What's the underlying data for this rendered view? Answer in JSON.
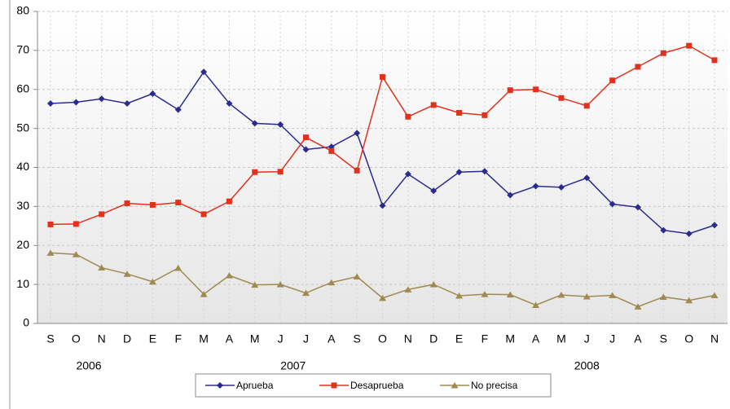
{
  "chart_data": {
    "type": "line",
    "categories": [
      "S",
      "O",
      "N",
      "D",
      "E",
      "F",
      "M",
      "A",
      "M",
      "J",
      "J",
      "A",
      "S",
      "O",
      "N",
      "D",
      "E",
      "F",
      "M",
      "A",
      "M",
      "J",
      "J",
      "A",
      "S",
      "O",
      "N"
    ],
    "x_groups": [
      "2006",
      "2007",
      "2008"
    ],
    "series": [
      {
        "name": "Aprueba",
        "color": "#2b2b8f",
        "marker": "diamond",
        "values": [
          56.4,
          56.7,
          57.6,
          56.4,
          58.9,
          54.8,
          64.5,
          56.4,
          51.3,
          51.0,
          44.6,
          45.3,
          48.8,
          30.2,
          38.3,
          34.0,
          38.8,
          39.0,
          32.9,
          35.2,
          34.9,
          37.3,
          30.6,
          29.8,
          23.9,
          23.0,
          25.2
        ]
      },
      {
        "name": "Desaprueba",
        "color": "#e2311d",
        "marker": "square",
        "values": [
          25.4,
          25.5,
          28.0,
          30.8,
          30.4,
          31.0,
          28.0,
          31.3,
          38.8,
          38.9,
          47.7,
          44.2,
          39.2,
          63.2,
          53.0,
          56.0,
          54.0,
          53.4,
          59.8,
          60.0,
          57.8,
          55.8,
          62.3,
          65.8,
          69.3,
          71.2,
          67.5
        ]
      },
      {
        "name": "No precisa",
        "color": "#a08a52",
        "marker": "triangle",
        "values": [
          18.1,
          17.7,
          14.3,
          12.7,
          10.7,
          14.2,
          7.5,
          12.3,
          9.9,
          10.0,
          7.8,
          10.5,
          12.0,
          6.5,
          8.7,
          10.0,
          7.1,
          7.5,
          7.4,
          4.7,
          7.3,
          6.9,
          7.2,
          4.3,
          6.8,
          5.9,
          7.2
        ]
      }
    ],
    "ylim": [
      0,
      80
    ],
    "yticks": [
      0,
      10,
      20,
      30,
      40,
      50,
      60,
      70,
      80
    ],
    "grid": true
  }
}
